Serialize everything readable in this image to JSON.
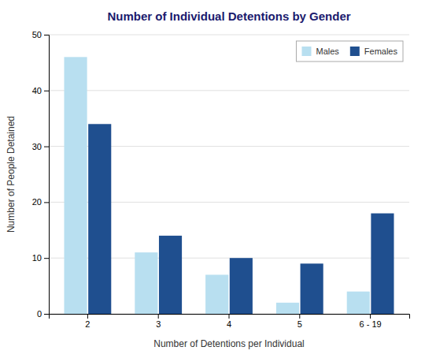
{
  "chart_data": {
    "type": "bar",
    "title": "Number of Individual Detentions by Gender",
    "xlabel": "Number of Detentions per Individual",
    "ylabel": "Number of People Detained",
    "categories": [
      "2",
      "3",
      "4",
      "5",
      "6 - 19"
    ],
    "series": [
      {
        "name": "Males",
        "color": "#b8dff0",
        "values": [
          46,
          11,
          7,
          2,
          4
        ]
      },
      {
        "name": "Females",
        "color": "#1f4f8f",
        "values": [
          34,
          14,
          10,
          9,
          18
        ]
      }
    ],
    "ylim": [
      0,
      50
    ],
    "yticks": [
      0,
      10,
      20,
      30,
      40,
      50
    ],
    "grid": true,
    "legend": "upper right"
  }
}
